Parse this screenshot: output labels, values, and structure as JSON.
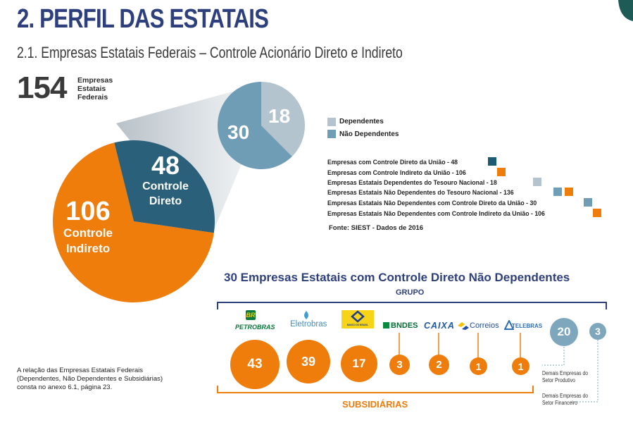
{
  "header": {
    "title": "2. PERFIL DAS ESTATAIS",
    "subtitle": "2.1. Empresas Estatais Federais – Controle Acionário Direto e Indireto"
  },
  "total": {
    "value": "154",
    "label": "Empresas Estatais Federais"
  },
  "chart_data": [
    {
      "type": "pie",
      "title": "",
      "slices": [
        {
          "value": 106,
          "label_value": "106",
          "label_text": "Controle Indireto",
          "color": "#ef7d0b"
        },
        {
          "value": 48,
          "label_value": "48",
          "label_text": "Controle Direto",
          "color": "#2a6079"
        }
      ]
    },
    {
      "type": "pie",
      "title": "",
      "slices": [
        {
          "value": 18,
          "label_value": "18",
          "name": "Dependentes",
          "color": "#b4c4cf"
        },
        {
          "value": 30,
          "label_value": "30",
          "name": "Não Dependentes",
          "color": "#6f9db6"
        }
      ]
    },
    {
      "type": "bar",
      "title": "30 Empresas Estatais com Controle Direto Não Dependentes",
      "categories": [
        "PETROBRAS",
        "Eletrobras",
        "BANCO DO BRASIL",
        "BNDES",
        "CAIXA",
        "Correios",
        "TELEBRAS"
      ],
      "values": [
        43,
        39,
        17,
        3,
        2,
        1,
        1
      ],
      "others": [
        {
          "value": 20,
          "label": "Demais Empresas do Setor Produtivo"
        },
        {
          "value": 3,
          "label": "Demais Empresas do Setor Financeiro"
        }
      ]
    }
  ],
  "legend": {
    "items": [
      {
        "label": "Dependentes",
        "color": "#b4c4cf"
      },
      {
        "label": "Não Dependentes",
        "color": "#6f9db6"
      }
    ]
  },
  "stats": [
    {
      "text": "Empresas com Controle Direto da União - 48",
      "colors": [
        "#1d5a73"
      ]
    },
    {
      "text": "Empresas com Controle Indireto da União - 106",
      "colors": [
        "#ef7d0b"
      ]
    },
    {
      "text": "Empresas Estatais Dependentes do Tesouro Nacional - 18",
      "colors": [
        "#b4c4cf"
      ]
    },
    {
      "text": "Empresas Estatais Não Dependentes do Tesouro Nacional - 136",
      "colors": [
        "#6f9db6",
        "#ef7d0b"
      ]
    },
    {
      "text": "Empresas Estatais Não Dependentes com Controle Direto da União - 30",
      "colors": [
        "#6f9db6"
      ]
    },
    {
      "text": "Empresas Estatais Não Dependentes com Controle Indireto da União - 106",
      "colors": [
        "#ef7d0b"
      ]
    }
  ],
  "source": "Fonte: SIEST - Dados de 2016",
  "bottom": {
    "title": "30 Empresas Estatais com Controle Direto Não Dependentes",
    "grupo": "GRUPO",
    "subsidiarias": "SUBSIDIÁRIAS"
  },
  "logos": {
    "petrobras_br": "BR",
    "petrobras": "PETROBRAS",
    "eletrobras": "Eletrobras",
    "bb": "BANCO DO BRASIL",
    "bndes": "BNDES",
    "caixa": "CAIXA",
    "correios": "Correios",
    "telebras": "TELEBRAS"
  },
  "annex_note": "A relação das Empresas Estatais Federais (Dependentes, Não Dependentes e Subsidiárias) consta no anexo 6.1, página 23.",
  "colors": {
    "navy": "#2e3f7e",
    "orange": "#ef7d0b",
    "dark_teal": "#2a6079",
    "steel_blue": "#6f9db6",
    "light_grey_blue": "#b4c4cf"
  }
}
